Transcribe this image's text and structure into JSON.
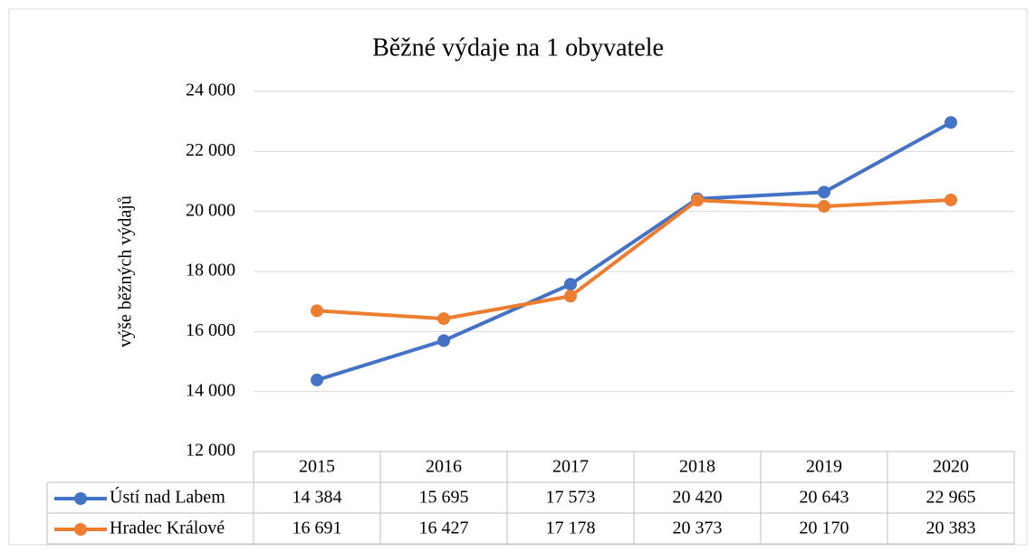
{
  "chart_data": {
    "type": "line",
    "title": "Běžné výdaje na 1 obyvatele",
    "ylabel": "výše běžných výdajů",
    "categories": [
      "2015",
      "2016",
      "2017",
      "2018",
      "2019",
      "2020"
    ],
    "series": [
      {
        "name": "Ústí nad Labem",
        "color": "#4472c4",
        "values": [
          14384,
          15695,
          17573,
          20420,
          20643,
          22965
        ],
        "value_labels": [
          "14 384",
          "15 695",
          "17 573",
          "20 420",
          "20 643",
          "22 965"
        ]
      },
      {
        "name": "Hradec Králové",
        "color": "#ed7d31",
        "values": [
          16691,
          16427,
          17178,
          20373,
          20170,
          20383
        ],
        "value_labels": [
          "16 691",
          "16 427",
          "17 178",
          "20 373",
          "20 170",
          "20 383"
        ]
      }
    ],
    "ylim": [
      12000,
      24000
    ],
    "yticks": [
      {
        "value": 12000,
        "label": "12 000"
      },
      {
        "value": 14000,
        "label": "14 000"
      },
      {
        "value": 16000,
        "label": "16 000"
      },
      {
        "value": 18000,
        "label": "18 000"
      },
      {
        "value": 20000,
        "label": "20 000"
      },
      {
        "value": 22000,
        "label": "22 000"
      },
      {
        "value": 24000,
        "label": "24 000"
      }
    ],
    "grid": true
  }
}
